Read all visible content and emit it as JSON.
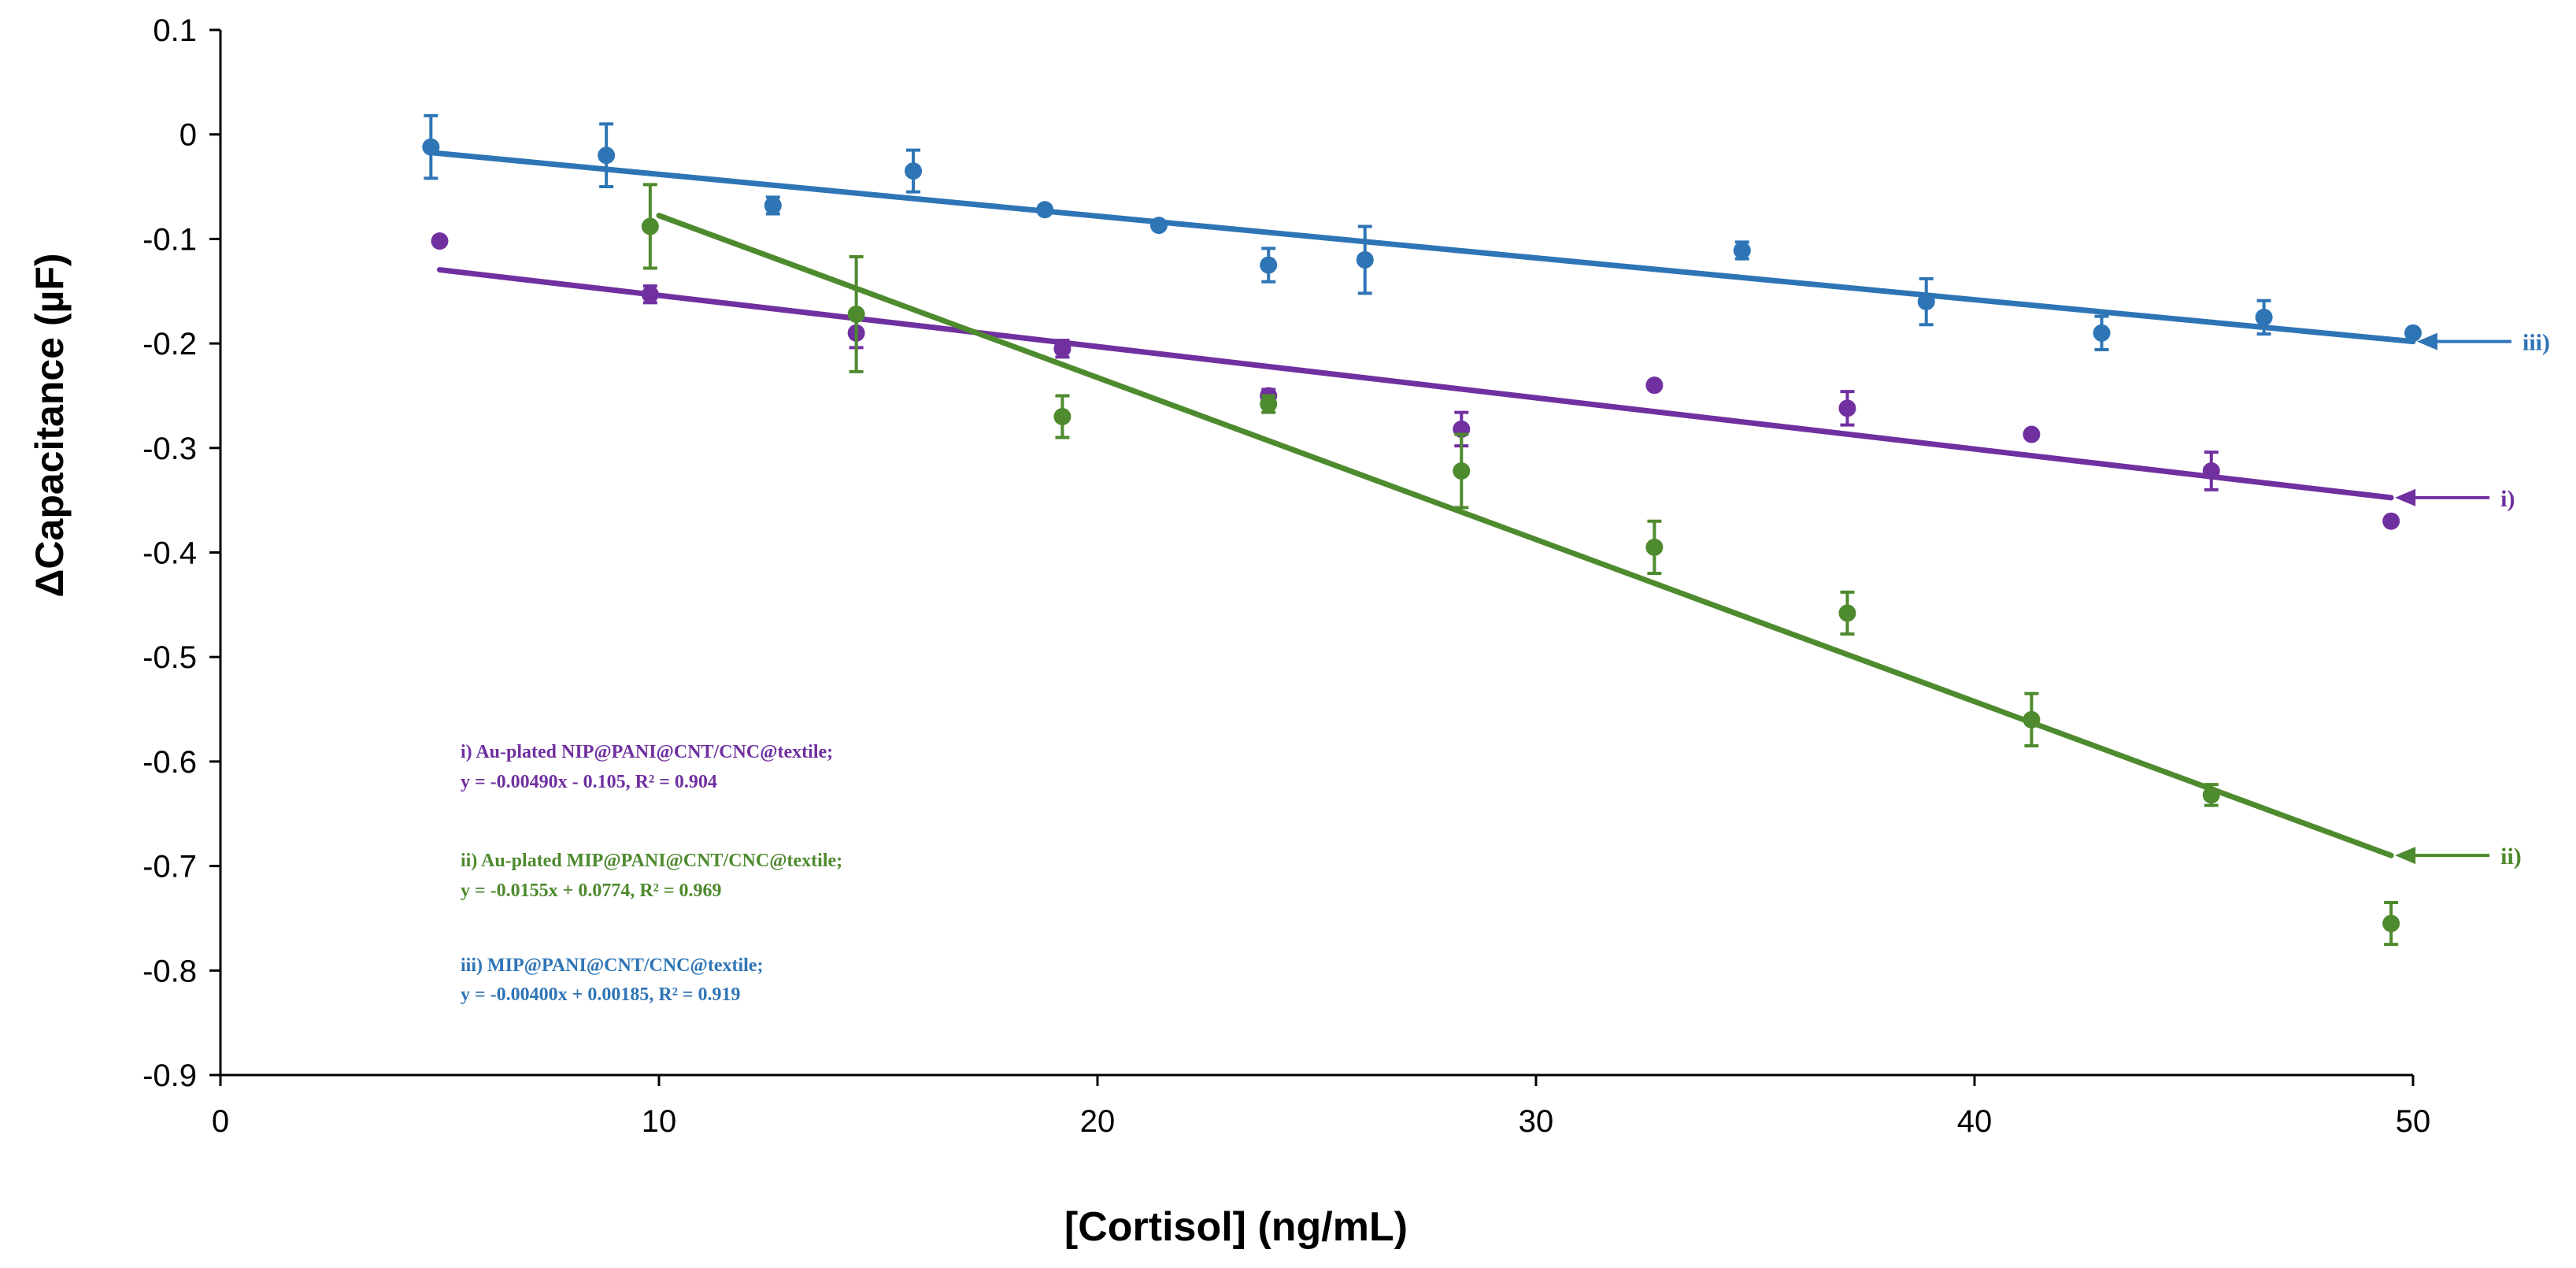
{
  "chart_data": {
    "type": "scatter",
    "title": "",
    "xlabel": "[Cortisol] (ng/mL)",
    "ylabel": "ΔCapacitance (µF)",
    "xlim": [
      0,
      50
    ],
    "ylim": [
      -0.9,
      0.1
    ],
    "x_ticks": [
      0,
      10,
      20,
      30,
      40,
      50
    ],
    "y_ticks": [
      0.1,
      0,
      -0.1,
      -0.2,
      -0.3,
      -0.4,
      -0.5,
      -0.6,
      -0.7,
      -0.8,
      -0.9
    ],
    "x_tick_labels": [
      "0",
      "10",
      "20",
      "30",
      "40",
      "50"
    ],
    "y_tick_labels": [
      "0.1",
      "0",
      "-0.1",
      "-0.2",
      "-0.3",
      "-0.4",
      "-0.5",
      "-0.6",
      "-0.7",
      "-0.8",
      "-0.9"
    ],
    "grid": false,
    "series": [
      {
        "id": "i",
        "name": "i) Au-plated NIP@PANI@CNT/CNC@textile;",
        "equation": "y = -0.00490x - 0.105, R² = 0.904",
        "label": "i)",
        "color": "#7030A0",
        "x": [
          5.0,
          9.8,
          14.5,
          19.2,
          23.9,
          28.3,
          32.7,
          37.1,
          41.3,
          45.4,
          49.5
        ],
        "y": [
          -0.102,
          -0.153,
          -0.19,
          -0.205,
          -0.25,
          -0.282,
          -0.24,
          -0.262,
          -0.287,
          -0.322,
          -0.37
        ],
        "error": [
          0.0,
          0.008,
          0.014,
          0.008,
          0.006,
          0.016,
          0.0,
          0.016,
          0.0,
          0.018,
          0.0
        ],
        "fit": {
          "slope": -0.0049,
          "intercept": -0.105,
          "x_range": [
            5.0,
            49.5
          ]
        }
      },
      {
        "id": "ii",
        "name": "ii) Au-plated MIP@PANI@CNT/CNC@textile;",
        "equation": "y = -0.0155x + 0.0774, R² = 0.969",
        "label": "ii)",
        "color": "#4E8A2E",
        "x": [
          9.8,
          14.5,
          19.2,
          23.9,
          28.3,
          32.7,
          37.1,
          41.3,
          45.4,
          49.5
        ],
        "y": [
          -0.088,
          -0.172,
          -0.27,
          -0.258,
          -0.322,
          -0.395,
          -0.458,
          -0.56,
          -0.632,
          -0.755
        ],
        "error": [
          0.04,
          0.055,
          0.02,
          0.008,
          0.035,
          0.025,
          0.02,
          0.025,
          0.01,
          0.02
        ],
        "fit": {
          "slope": -0.0155,
          "intercept": 0.0774,
          "x_range": [
            10.0,
            49.5
          ]
        }
      },
      {
        "id": "iii",
        "name": "iii) MIP@PANI@CNT/CNC@textile;",
        "equation": "y = -0.00400x + 0.00185, R² = 0.919",
        "label": "iii)",
        "color": "#2E75B6",
        "x": [
          4.8,
          8.8,
          12.6,
          15.8,
          18.8,
          21.4,
          23.9,
          26.1,
          34.7,
          38.9,
          42.9,
          46.6,
          50.0
        ],
        "y": [
          -0.012,
          -0.02,
          -0.068,
          -0.035,
          -0.072,
          -0.087,
          -0.125,
          -0.12,
          -0.111,
          -0.16,
          -0.19,
          -0.175,
          -0.19
        ],
        "error": [
          0.03,
          0.03,
          0.008,
          0.02,
          0.0,
          0.0,
          0.016,
          0.032,
          0.008,
          0.022,
          0.016,
          0.016,
          0.0
        ],
        "fit": {
          "slope": -0.004,
          "intercept": 0.00185,
          "x_range": [
            4.8,
            50.0
          ]
        }
      }
    ]
  }
}
